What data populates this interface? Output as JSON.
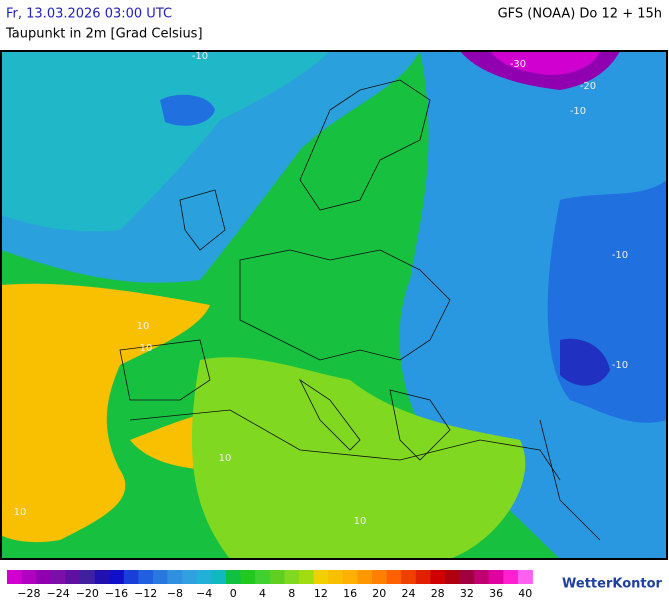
{
  "header": {
    "datetime": "Fr, 13.03.2026 03:00 UTC",
    "model": "GFS (NOAA) Do 12 + 15h",
    "subtitle": "Taupunkt in 2m [Grad Celsius]"
  },
  "map": {
    "contour_labels": [
      "-10",
      "-30",
      "-20",
      "-10",
      "10",
      "10",
      "10",
      "10",
      "-10",
      "-10",
      "10"
    ]
  },
  "colorbar": {
    "labels": [
      "−28",
      "−24",
      "−20",
      "−16",
      "−12",
      "−8",
      "−4",
      "0",
      "4",
      "8",
      "12",
      "16",
      "20",
      "24",
      "28",
      "32",
      "36",
      "40"
    ],
    "colors": [
      "#d000d0",
      "#b000c0",
      "#9000b0",
      "#7a10a8",
      "#6010a0",
      "#4020a0",
      "#2010b0",
      "#1010c8",
      "#1840d8",
      "#2060e0",
      "#2878e0",
      "#3090e0",
      "#30a0e0",
      "#20b0d8",
      "#10b8c0",
      "#10c040",
      "#20c820",
      "#40d030",
      "#60d020",
      "#80d820",
      "#a0dc10",
      "#f0d000",
      "#f8c000",
      "#ffb000",
      "#ff9800",
      "#ff8000",
      "#ff6000",
      "#f04000",
      "#e02000",
      "#d00000",
      "#b00010",
      "#a00040",
      "#c00070",
      "#e000a0",
      "#ff20d0",
      "#ff60f0"
    ]
  },
  "brand": "WetterKontor"
}
